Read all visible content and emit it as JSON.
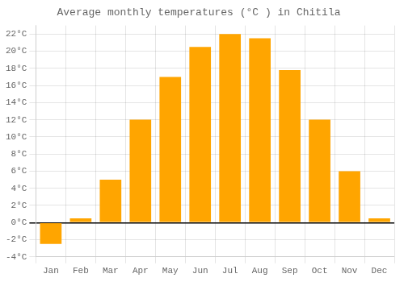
{
  "chart_data": {
    "type": "bar",
    "title": "Average monthly temperatures (°C ) in Chitila",
    "categories": [
      "Jan",
      "Feb",
      "Mar",
      "Apr",
      "May",
      "Jun",
      "Jul",
      "Aug",
      "Sep",
      "Oct",
      "Nov",
      "Dec"
    ],
    "values": [
      -2.5,
      0.5,
      5.0,
      12.0,
      17.0,
      20.5,
      22.0,
      21.5,
      17.8,
      12.0,
      6.0,
      0.5
    ],
    "color": "#FFA500",
    "ylim": [
      -4,
      23
    ],
    "yticks": [
      {
        "value": -4,
        "label": "-4°C"
      },
      {
        "value": -2,
        "label": "-2°C"
      },
      {
        "value": 0,
        "label": "0°C"
      },
      {
        "value": 2,
        "label": "2°C"
      },
      {
        "value": 4,
        "label": "4°C"
      },
      {
        "value": 6,
        "label": "6°C"
      },
      {
        "value": 8,
        "label": "8°C"
      },
      {
        "value": 10,
        "label": "10°C"
      },
      {
        "value": 12,
        "label": "12°C"
      },
      {
        "value": 14,
        "label": "14°C"
      },
      {
        "value": 16,
        "label": "16°C"
      },
      {
        "value": 18,
        "label": "18°C"
      },
      {
        "value": 20,
        "label": "20°C"
      },
      {
        "value": 22,
        "label": "22°C"
      }
    ],
    "grid": true
  }
}
